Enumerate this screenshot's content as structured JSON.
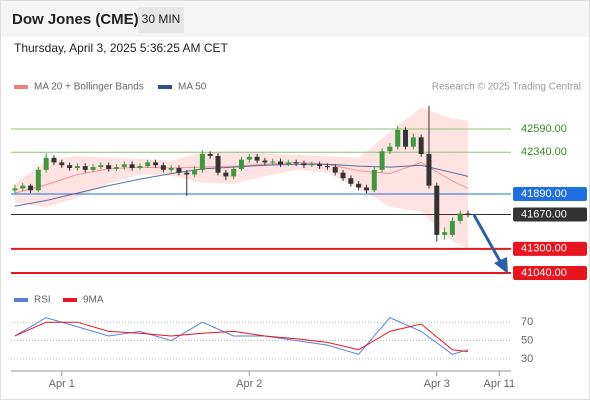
{
  "chart_data": {
    "type": "candlestick",
    "title": "Dow Jones (CME)",
    "interval": "30 MIN",
    "subtitle": "Thursday, April 3, 2025 5:36:25 AM CET",
    "credit": "Research © 2025 Trading Central",
    "up_color": "#3c9a3c",
    "down_color": "#333333",
    "xlim": [
      -0.5,
      63.5
    ],
    "xticks": [
      {
        "value": 6,
        "label": "Apr 1"
      },
      {
        "value": 30,
        "label": "Apr 2"
      },
      {
        "value": 54,
        "label": "Apr 3"
      },
      {
        "value": 62,
        "label": "Apr 11"
      }
    ],
    "ylim": [
      40900,
      42945
    ],
    "candles": [
      [
        41930,
        41990,
        41900,
        41950
      ],
      [
        41950,
        42010,
        41920,
        41980
      ],
      [
        41980,
        42000,
        41900,
        41930
      ],
      [
        41930,
        42180,
        41910,
        42150
      ],
      [
        42150,
        42330,
        42120,
        42280
      ],
      [
        42280,
        42310,
        42200,
        42230
      ],
      [
        42230,
        42260,
        42170,
        42200
      ],
      [
        42200,
        42230,
        42140,
        42170
      ],
      [
        42170,
        42220,
        42140,
        42190
      ],
      [
        42190,
        42220,
        42120,
        42150
      ],
      [
        42150,
        42210,
        42130,
        42180
      ],
      [
        42180,
        42230,
        42160,
        42200
      ],
      [
        42200,
        42230,
        42130,
        42160
      ],
      [
        42160,
        42210,
        42140,
        42180
      ],
      [
        42180,
        42240,
        42150,
        42210
      ],
      [
        42210,
        42240,
        42140,
        42170
      ],
      [
        42170,
        42220,
        42150,
        42190
      ],
      [
        42190,
        42260,
        42170,
        42230
      ],
      [
        42230,
        42260,
        42170,
        42200
      ],
      [
        42200,
        42230,
        42120,
        42150
      ],
      [
        42150,
        42200,
        42120,
        42170
      ],
      [
        42170,
        42200,
        42090,
        42120
      ],
      [
        42120,
        42150,
        41870,
        42100
      ],
      [
        42100,
        42190,
        42070,
        42150
      ],
      [
        42150,
        42360,
        42120,
        42320
      ],
      [
        42320,
        42350,
        42270,
        42300
      ],
      [
        42300,
        42330,
        42090,
        42120
      ],
      [
        42120,
        42150,
        42040,
        42080
      ],
      [
        42080,
        42190,
        42050,
        42160
      ],
      [
        42160,
        42290,
        42140,
        42260
      ],
      [
        42260,
        42320,
        42230,
        42290
      ],
      [
        42290,
        42320,
        42220,
        42250
      ],
      [
        42250,
        42280,
        42200,
        42230
      ],
      [
        42230,
        42270,
        42200,
        42240
      ],
      [
        42240,
        42270,
        42180,
        42210
      ],
      [
        42210,
        42260,
        42190,
        42230
      ],
      [
        42230,
        42260,
        42190,
        42220
      ],
      [
        42220,
        42250,
        42170,
        42200
      ],
      [
        42200,
        42240,
        42180,
        42210
      ],
      [
        42210,
        42240,
        42160,
        42190
      ],
      [
        42190,
        42220,
        42150,
        42180
      ],
      [
        42180,
        42210,
        42090,
        42120
      ],
      [
        42120,
        42150,
        42030,
        42060
      ],
      [
        42060,
        42090,
        41970,
        42000
      ],
      [
        42000,
        42030,
        41930,
        41960
      ],
      [
        41960,
        41990,
        41900,
        41930
      ],
      [
        41930,
        42180,
        41910,
        42150
      ],
      [
        42150,
        42380,
        42120,
        42350
      ],
      [
        42350,
        42440,
        42320,
        42400
      ],
      [
        42400,
        42620,
        42370,
        42580
      ],
      [
        42580,
        42610,
        42370,
        42400
      ],
      [
        42400,
        42540,
        42370,
        42500
      ],
      [
        42500,
        42530,
        42290,
        42320
      ],
      [
        42320,
        42840,
        41950,
        41980
      ],
      [
        41980,
        42010,
        41380,
        41450
      ],
      [
        41450,
        41530,
        41400,
        41480
      ],
      [
        41450,
        41640,
        41430,
        41600
      ],
      [
        41600,
        41710,
        41570,
        41680
      ],
      [
        41680,
        41710,
        41640,
        41670
      ]
    ],
    "bands_x": [
      0,
      4,
      8,
      12,
      16,
      20,
      24,
      28,
      32,
      36,
      40,
      44,
      48,
      52,
      56,
      58
    ],
    "band_color": "#ffd6d6",
    "series": [
      {
        "name": "MA 20 + Bollinger Bands",
        "color": "#f08080",
        "values": [
          41900,
          41990,
          42100,
          42160,
          42180,
          42170,
          42180,
          42190,
          42210,
          42230,
          42210,
          42140,
          42110,
          42230,
          42030,
          41950
        ]
      },
      {
        "name": "MA 50",
        "color": "#2f4f8f",
        "values": [
          41760,
          41820,
          41900,
          41980,
          42050,
          42110,
          42160,
          42180,
          42200,
          42210,
          42210,
          42190,
          42180,
          42200,
          42120,
          42080
        ]
      }
    ],
    "band_upper": [
      42000,
      42250,
      42300,
      42280,
      42270,
      42250,
      42340,
      42350,
      42330,
      42310,
      42300,
      42280,
      42560,
      42820,
      42700,
      42680
    ],
    "band_lower": [
      41800,
      41750,
      41850,
      42000,
      42100,
      42090,
      42010,
      42000,
      42080,
      42150,
      42120,
      41950,
      41750,
      41700,
      41380,
      41300
    ],
    "levels": [
      {
        "value": 42590,
        "label": "42590.00",
        "color": "#8cc47a",
        "filled": false
      },
      {
        "value": 42340,
        "label": "42340.00",
        "color": "#8cc47a",
        "filled": false
      },
      {
        "value": 41890,
        "label": "41890.00",
        "color": "#1e6fe0",
        "filled": true
      },
      {
        "value": 41670,
        "label": "41670.00",
        "color": "#333333",
        "filled": true
      },
      {
        "value": 41300,
        "label": "41300.00",
        "color": "#e8141e",
        "filled": true
      },
      {
        "value": 41040,
        "label": "41040.00",
        "color": "#e8141e",
        "filled": true
      }
    ],
    "rsi": {
      "ylim": [
        19,
        104
      ],
      "yticks": [
        70,
        50,
        30
      ],
      "series": [
        {
          "name": "RSI",
          "color": "#5a7fd8",
          "values": [
            55,
            75,
            65,
            55,
            60,
            50,
            70,
            55,
            55,
            50,
            45,
            35,
            75,
            60,
            35,
            40
          ]
        },
        {
          "name": "9MA",
          "color": "#e8141e",
          "values": [
            55,
            70,
            70,
            60,
            58,
            55,
            58,
            60,
            55,
            52,
            48,
            40,
            60,
            68,
            40,
            38
          ]
        }
      ]
    }
  }
}
